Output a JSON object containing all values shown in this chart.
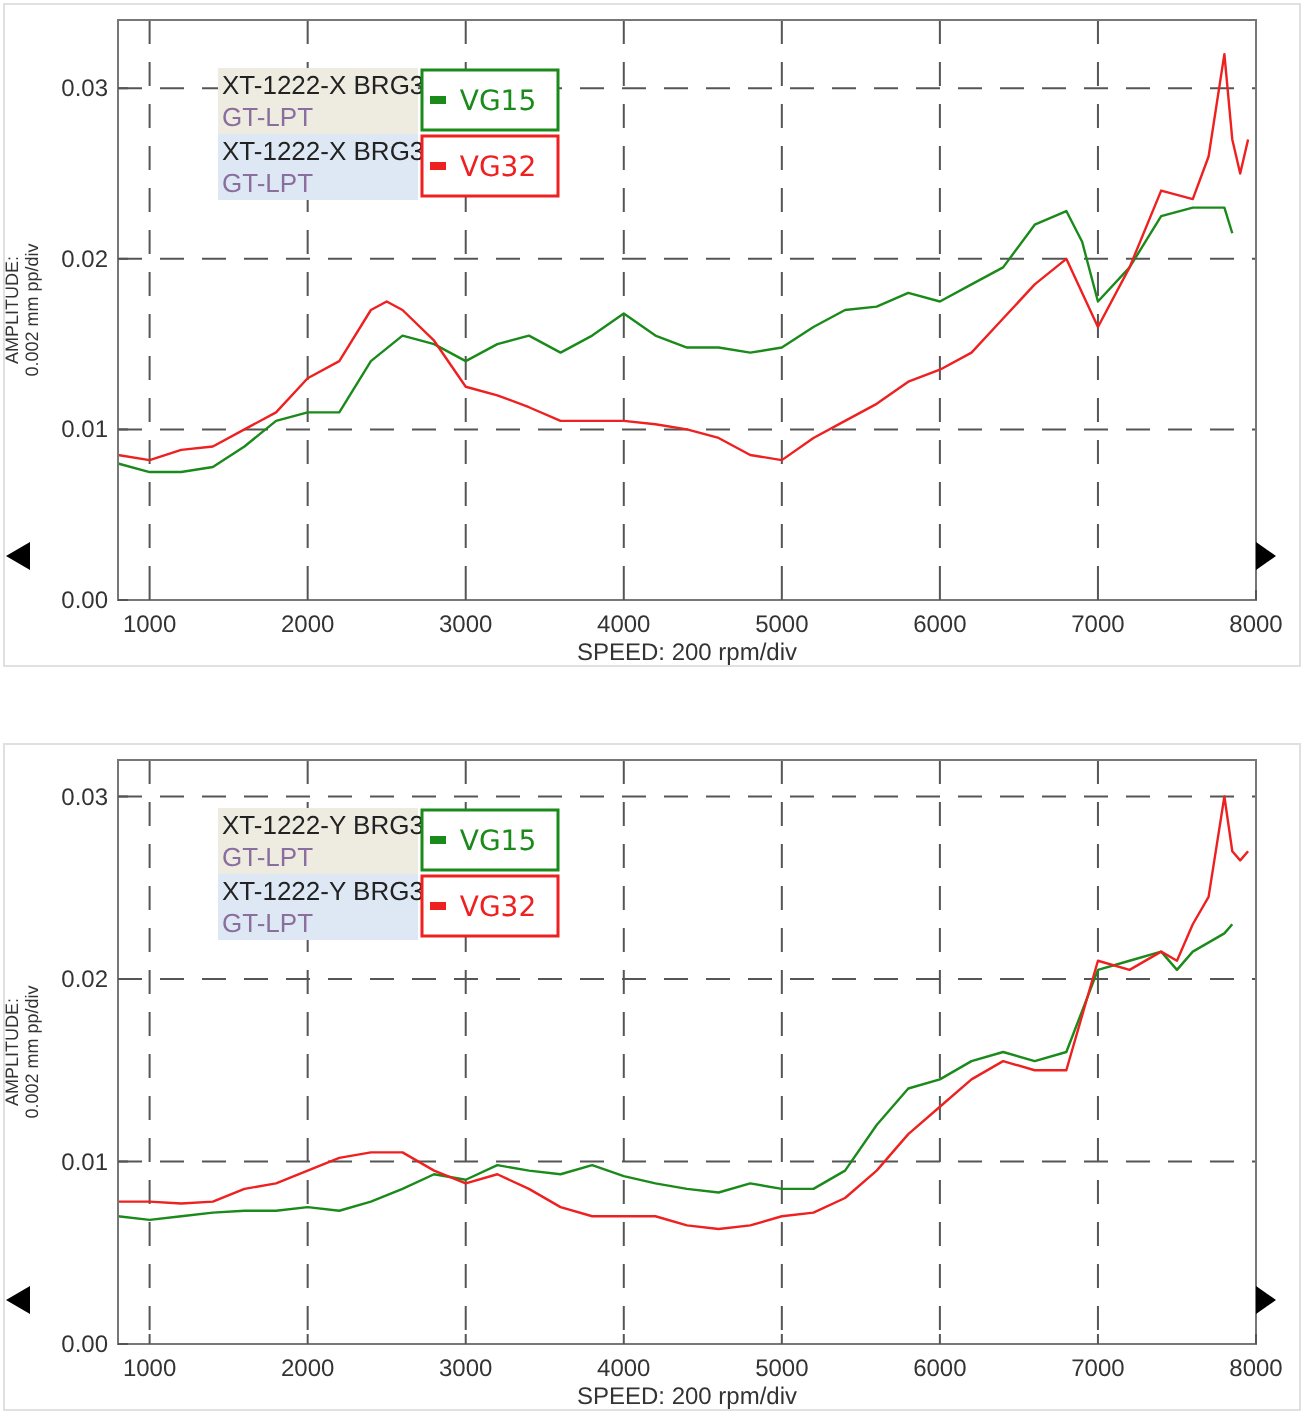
{
  "chart_data": [
    {
      "type": "line",
      "xlabel": "SPEED: 200 rpm/div",
      "ylabel": "AMPLITUDE:\n0.002 mm pp/div",
      "xlim": [
        800,
        8000
      ],
      "ylim": [
        0,
        0.034
      ],
      "xticks": [
        1000,
        2000,
        3000,
        4000,
        5000,
        6000,
        7000,
        8000
      ],
      "yticks": [
        {
          "value": 0,
          "label": "0.00"
        },
        {
          "value": 0.01,
          "label": "0.01"
        },
        {
          "value": 0.02,
          "label": "0.02"
        },
        {
          "value": 0.03,
          "label": "0.03"
        }
      ],
      "grid": true,
      "legend": "top left",
      "annotations": [
        "XT-1222-X BRG3",
        "GT-LPT",
        "XT-1222-X BRG3",
        "GT-LPT"
      ],
      "series": [
        {
          "name": "VG15",
          "color": "#1a8a1a",
          "x": [
            800,
            1000,
            1200,
            1400,
            1600,
            1800,
            2000,
            2200,
            2400,
            2600,
            2800,
            3000,
            3200,
            3400,
            3600,
            3800,
            4000,
            4200,
            4400,
            4600,
            4800,
            5000,
            5200,
            5400,
            5600,
            5800,
            6000,
            6200,
            6400,
            6600,
            6800,
            6900,
            7000,
            7200,
            7400,
            7600,
            7800,
            7850
          ],
          "values": [
            0.008,
            0.0075,
            0.0075,
            0.0078,
            0.009,
            0.0105,
            0.011,
            0.011,
            0.014,
            0.0155,
            0.015,
            0.014,
            0.015,
            0.0155,
            0.0145,
            0.0155,
            0.0168,
            0.0155,
            0.0148,
            0.0148,
            0.0145,
            0.0148,
            0.016,
            0.017,
            0.0172,
            0.018,
            0.0175,
            0.0185,
            0.0195,
            0.022,
            0.0228,
            0.021,
            0.0175,
            0.0195,
            0.0225,
            0.023,
            0.023,
            0.0215
          ]
        },
        {
          "name": "VG32",
          "color": "#ee2020",
          "x": [
            800,
            1000,
            1200,
            1400,
            1600,
            1800,
            2000,
            2200,
            2400,
            2500,
            2600,
            2800,
            3000,
            3200,
            3400,
            3600,
            3800,
            4000,
            4200,
            4400,
            4600,
            4800,
            5000,
            5200,
            5400,
            5600,
            5800,
            6000,
            6200,
            6400,
            6600,
            6800,
            7000,
            7200,
            7400,
            7600,
            7700,
            7800,
            7850,
            7900,
            7950
          ],
          "values": [
            0.0085,
            0.0082,
            0.0088,
            0.009,
            0.01,
            0.011,
            0.013,
            0.014,
            0.017,
            0.0175,
            0.017,
            0.0152,
            0.0125,
            0.012,
            0.0113,
            0.0105,
            0.0105,
            0.0105,
            0.0103,
            0.01,
            0.0095,
            0.0085,
            0.0082,
            0.0095,
            0.0105,
            0.0115,
            0.0128,
            0.0135,
            0.0145,
            0.0165,
            0.0185,
            0.02,
            0.016,
            0.0195,
            0.024,
            0.0235,
            0.026,
            0.032,
            0.027,
            0.025,
            0.027
          ]
        }
      ]
    },
    {
      "type": "line",
      "xlabel": "SPEED: 200 rpm/div",
      "ylabel": "AMPLITUDE:\n0.002 mm pp/div",
      "xlim": [
        800,
        8000
      ],
      "ylim": [
        0,
        0.032
      ],
      "xticks": [
        1000,
        2000,
        3000,
        4000,
        5000,
        6000,
        7000,
        8000
      ],
      "yticks": [
        {
          "value": 0,
          "label": "0.00"
        },
        {
          "value": 0.01,
          "label": "0.01"
        },
        {
          "value": 0.02,
          "label": "0.02"
        },
        {
          "value": 0.03,
          "label": "0.03"
        }
      ],
      "grid": true,
      "legend": "top left",
      "annotations": [
        "XT-1222-Y BRG3",
        "GT-LPT",
        "XT-1222-Y BRG3",
        "GT-LPT"
      ],
      "series": [
        {
          "name": "VG15",
          "color": "#1a8a1a",
          "x": [
            800,
            1000,
            1200,
            1400,
            1600,
            1800,
            2000,
            2200,
            2400,
            2600,
            2800,
            3000,
            3200,
            3400,
            3600,
            3800,
            4000,
            4200,
            4400,
            4600,
            4800,
            5000,
            5200,
            5400,
            5600,
            5800,
            6000,
            6200,
            6400,
            6600,
            6800,
            7000,
            7200,
            7400,
            7500,
            7600,
            7800,
            7850
          ],
          "values": [
            0.007,
            0.0068,
            0.007,
            0.0072,
            0.0073,
            0.0073,
            0.0075,
            0.0073,
            0.0078,
            0.0085,
            0.0093,
            0.009,
            0.0098,
            0.0095,
            0.0093,
            0.0098,
            0.0092,
            0.0088,
            0.0085,
            0.0083,
            0.0088,
            0.0085,
            0.0085,
            0.0095,
            0.012,
            0.014,
            0.0145,
            0.0155,
            0.016,
            0.0155,
            0.016,
            0.0205,
            0.021,
            0.0215,
            0.0205,
            0.0215,
            0.0225,
            0.023
          ]
        },
        {
          "name": "VG32",
          "color": "#ee2020",
          "x": [
            800,
            1000,
            1200,
            1400,
            1600,
            1800,
            2000,
            2200,
            2400,
            2600,
            2800,
            3000,
            3200,
            3400,
            3600,
            3800,
            4000,
            4200,
            4400,
            4600,
            4800,
            5000,
            5200,
            5400,
            5600,
            5800,
            6000,
            6200,
            6400,
            6600,
            6800,
            7000,
            7200,
            7400,
            7500,
            7600,
            7700,
            7800,
            7850,
            7900,
            7950
          ],
          "values": [
            0.0078,
            0.0078,
            0.0077,
            0.0078,
            0.0085,
            0.0088,
            0.0095,
            0.0102,
            0.0105,
            0.0105,
            0.0095,
            0.0088,
            0.0093,
            0.0085,
            0.0075,
            0.007,
            0.007,
            0.007,
            0.0065,
            0.0063,
            0.0065,
            0.007,
            0.0072,
            0.008,
            0.0095,
            0.0115,
            0.013,
            0.0145,
            0.0155,
            0.015,
            0.015,
            0.021,
            0.0205,
            0.0215,
            0.021,
            0.023,
            0.0245,
            0.03,
            0.027,
            0.0265,
            0.027
          ]
        }
      ]
    }
  ]
}
